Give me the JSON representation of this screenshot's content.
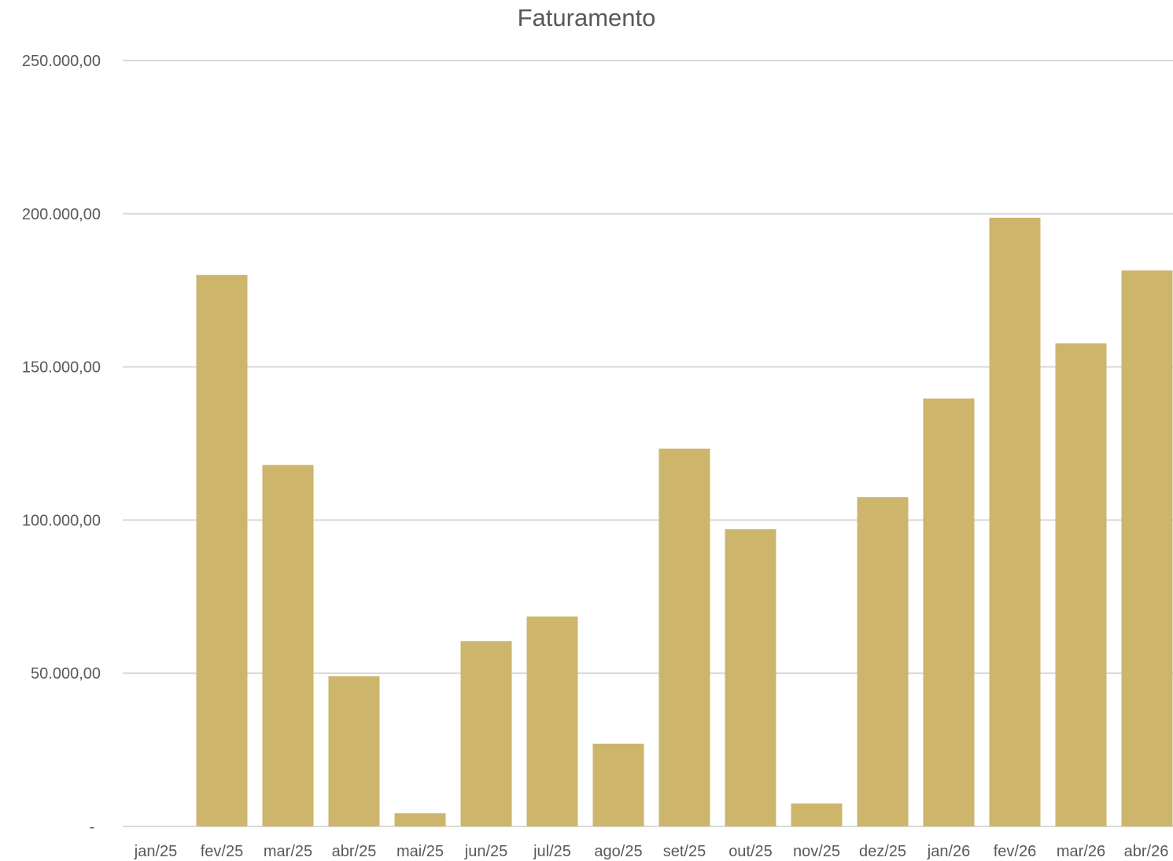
{
  "chart_data": {
    "type": "bar",
    "title": "Faturamento",
    "xlabel": "",
    "ylabel": "",
    "categories": [
      "jan/25",
      "fev/25",
      "mar/25",
      "abr/25",
      "mai/25",
      "jun/25",
      "jul/25",
      "ago/25",
      "set/25",
      "out/25",
      "nov/25",
      "dez/25",
      "jan/26",
      "fev/26",
      "mar/26",
      "abr/26"
    ],
    "values": [
      0,
      180000,
      118000,
      49000,
      4300,
      60500,
      68500,
      27000,
      123300,
      97000,
      7500,
      107500,
      139700,
      198700,
      157700,
      181500
    ],
    "ylim": [
      0,
      250000
    ],
    "y_ticks": [
      {
        "value": 0,
        "label": "-"
      },
      {
        "value": 50000,
        "label": "50.000,00"
      },
      {
        "value": 100000,
        "label": "100.000,00"
      },
      {
        "value": 150000,
        "label": "150.000,00"
      },
      {
        "value": 200000,
        "label": "200.000,00"
      },
      {
        "value": 250000,
        "label": "250.000,00"
      }
    ],
    "grid": true,
    "legend": "none",
    "bar_color": "#CDB56C",
    "grid_color": "#D9D9D9"
  }
}
